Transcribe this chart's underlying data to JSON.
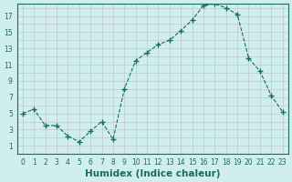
{
  "x": [
    0,
    1,
    2,
    3,
    4,
    5,
    6,
    7,
    8,
    9,
    10,
    11,
    12,
    13,
    14,
    15,
    16,
    17,
    18,
    19,
    20,
    21,
    22,
    23
  ],
  "y": [
    5,
    5.5,
    3.5,
    3.5,
    2.2,
    1.5,
    2.8,
    4,
    1.8,
    8,
    11.5,
    12.5,
    13.5,
    14,
    15.2,
    16.5,
    18.3,
    18.5,
    18,
    17.2,
    11.8,
    10.2,
    7.2,
    5.2
  ],
  "line_color": "#1a6b5a",
  "marker": "+",
  "marker_size": 4,
  "bg_color": "#d0eef0",
  "grid_color": "#c0c8c8",
  "xlabel": "Humidex (Indice chaleur)",
  "ylabel_ticks": [
    1,
    3,
    5,
    7,
    9,
    11,
    13,
    15,
    17
  ],
  "xtick_labels": [
    "0",
    "1",
    "2",
    "3",
    "4",
    "5",
    "6",
    "7",
    "8",
    "9",
    "10",
    "11",
    "12",
    "13",
    "14",
    "15",
    "16",
    "17",
    "18",
    "19",
    "20",
    "21",
    "22",
    "23"
  ],
  "ylim": [
    0,
    18.5
  ],
  "xlim": [
    -0.5,
    23.5
  ],
  "axis_fontsize": 6.5,
  "tick_fontsize": 5.5,
  "xlabel_fontsize": 7.5
}
